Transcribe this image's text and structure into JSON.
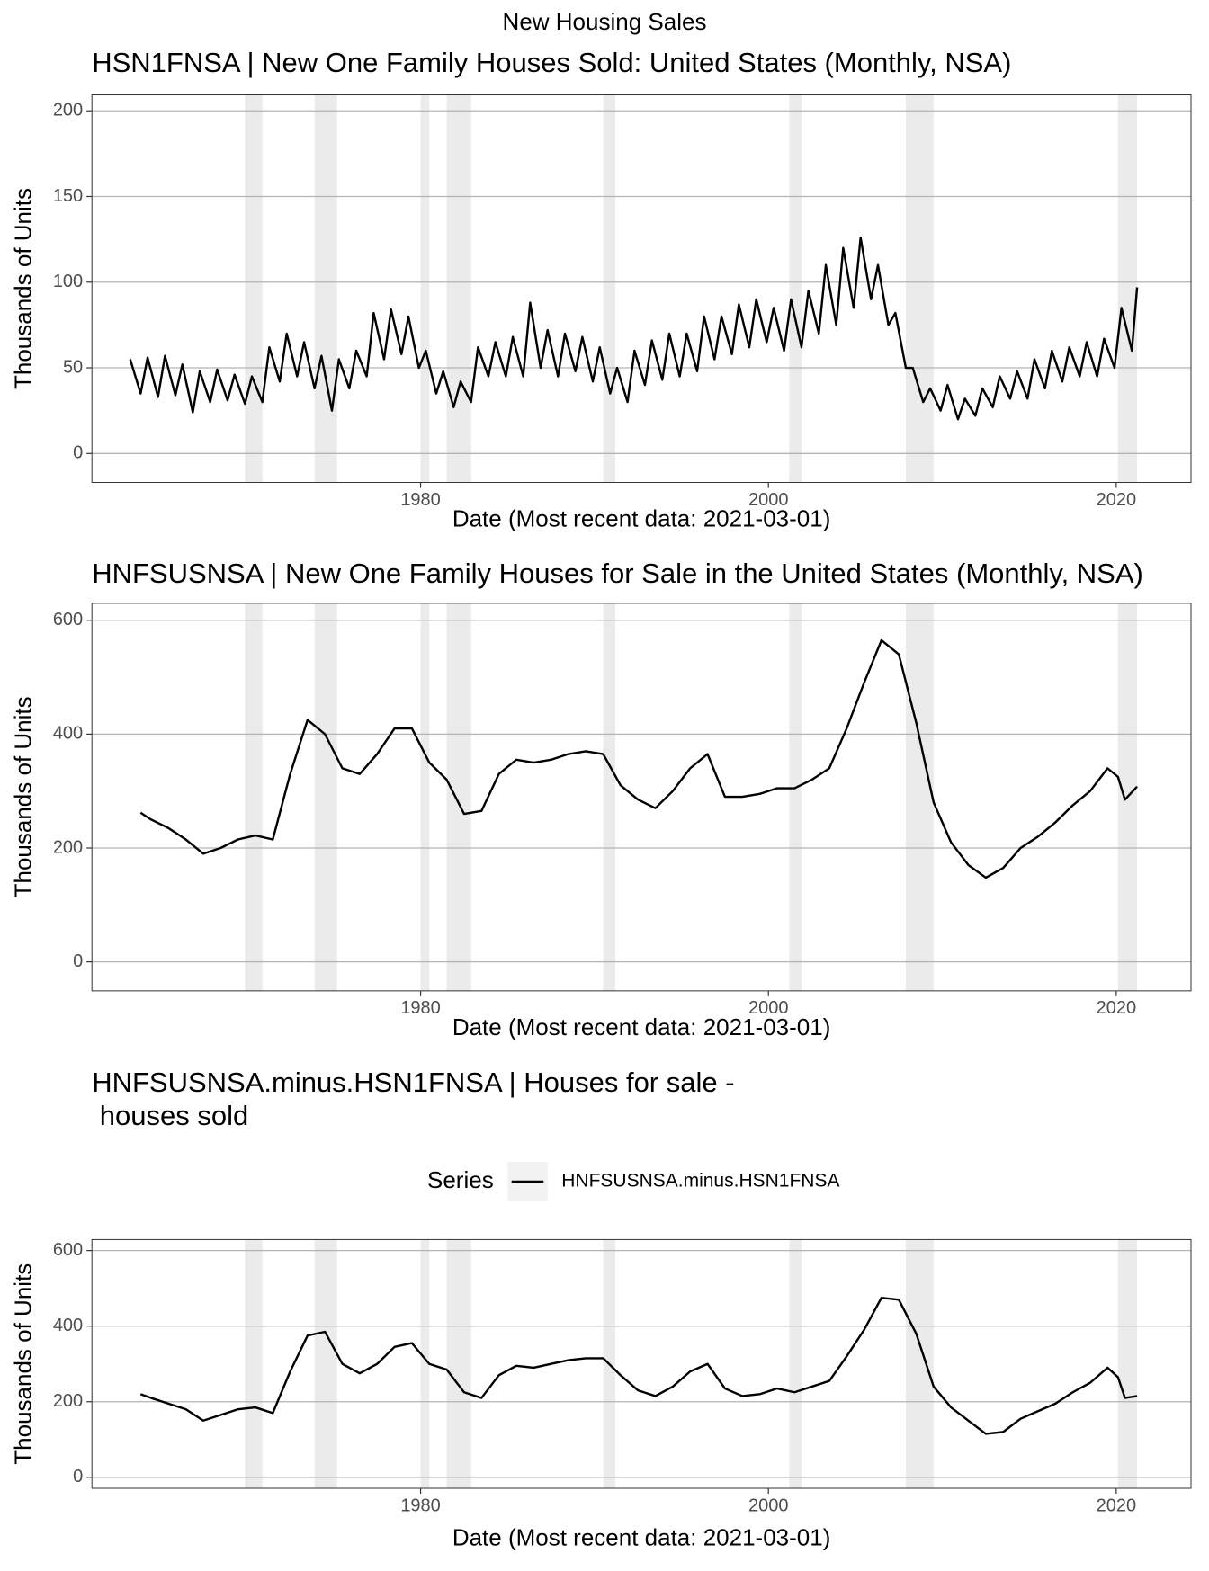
{
  "title": "New Housing Sales",
  "chart_data": [
    {
      "type": "line",
      "title": "HSN1FNSA | New One Family Houses Sold: United States (Monthly, NSA)",
      "x_label": "Date (Most recent data: 2021-03-01)",
      "y_label": "Thousands of Units",
      "x": [
        1963.3,
        1963.9,
        1964.3,
        1964.9,
        1965.3,
        1965.9,
        1966.3,
        1966.9,
        1967.3,
        1967.9,
        1968.3,
        1968.9,
        1969.3,
        1969.9,
        1970.3,
        1970.9,
        1971.3,
        1971.9,
        1972.3,
        1972.9,
        1973.3,
        1973.9,
        1974.3,
        1974.9,
        1975.3,
        1975.9,
        1976.3,
        1976.9,
        1977.3,
        1977.9,
        1978.3,
        1978.9,
        1979.3,
        1979.9,
        1980.3,
        1980.9,
        1981.3,
        1981.9,
        1982.3,
        1982.9,
        1983.3,
        1983.9,
        1984.3,
        1984.9,
        1985.3,
        1985.9,
        1986.3,
        1986.9,
        1987.3,
        1987.9,
        1988.3,
        1988.9,
        1989.3,
        1989.9,
        1990.3,
        1990.9,
        1991.3,
        1991.9,
        1992.3,
        1992.9,
        1993.3,
        1993.9,
        1994.3,
        1994.9,
        1995.3,
        1995.9,
        1996.3,
        1996.9,
        1997.3,
        1997.9,
        1998.3,
        1998.9,
        1999.3,
        1999.9,
        2000.3,
        2000.9,
        2001.3,
        2001.9,
        2002.3,
        2002.9,
        2003.3,
        2003.9,
        2004.3,
        2004.9,
        2005.3,
        2005.9,
        2006.3,
        2006.9,
        2007.3,
        2007.9,
        2008.3,
        2008.9,
        2009.3,
        2009.9,
        2010.3,
        2010.9,
        2011.3,
        2011.9,
        2012.3,
        2012.9,
        2013.3,
        2013.9,
        2014.3,
        2014.9,
        2015.3,
        2015.9,
        2016.3,
        2016.9,
        2017.3,
        2017.9,
        2018.3,
        2018.9,
        2019.3,
        2019.9,
        2020.3,
        2020.9,
        2021.2
      ],
      "series": [
        {
          "color": "#000000",
          "values": [
            55,
            35,
            56,
            33,
            57,
            34,
            52,
            24,
            48,
            30,
            49,
            31,
            46,
            29,
            45,
            30,
            62,
            42,
            70,
            45,
            65,
            38,
            57,
            25,
            55,
            38,
            60,
            45,
            82,
            55,
            84,
            58,
            80,
            50,
            60,
            35,
            48,
            27,
            42,
            30,
            62,
            45,
            65,
            45,
            68,
            45,
            88,
            50,
            72,
            45,
            70,
            48,
            68,
            42,
            62,
            35,
            50,
            30,
            60,
            40,
            66,
            43,
            70,
            45,
            70,
            48,
            80,
            55,
            80,
            58,
            87,
            62,
            90,
            65,
            85,
            60,
            90,
            62,
            95,
            70,
            110,
            75,
            120,
            85,
            126,
            90,
            110,
            75,
            82,
            50,
            50,
            30,
            38,
            25,
            40,
            20,
            32,
            22,
            38,
            27,
            45,
            32,
            48,
            32,
            55,
            38,
            60,
            42,
            62,
            45,
            65,
            45,
            67,
            50,
            85,
            60,
            97
          ]
        }
      ],
      "xlim": [
        1961.1,
        2024.3
      ],
      "xticks": [
        1980,
        2000,
        2020
      ],
      "ylim": [
        -16.9,
        209.3
      ],
      "yticks": [
        0,
        50,
        100,
        150,
        200
      ],
      "grid": true,
      "recession_color": "#ebebeb",
      "recessions": [
        [
          1969.9,
          1970.9
        ],
        [
          1973.9,
          1975.2
        ],
        [
          1980.0,
          1980.5
        ],
        [
          1981.5,
          1982.9
        ],
        [
          1990.5,
          1991.2
        ],
        [
          2001.2,
          2001.9
        ],
        [
          2007.9,
          2009.5
        ],
        [
          2020.1,
          2021.2
        ]
      ]
    },
    {
      "type": "line",
      "title": "HNFSUSNSA | New One Family Houses for Sale in the United States (Monthly, NSA)",
      "x_label": "Date (Most recent data: 2021-03-01)",
      "y_label": "Thousands of Units",
      "x": [
        1963.9,
        1964.5,
        1965.5,
        1966.5,
        1967.5,
        1968.5,
        1969.5,
        1970.5,
        1971.5,
        1972.5,
        1973.5,
        1974.5,
        1975.5,
        1976.5,
        1977.5,
        1978.5,
        1979.5,
        1980.5,
        1981.5,
        1982.5,
        1983.5,
        1984.5,
        1985.5,
        1986.5,
        1987.5,
        1988.5,
        1989.5,
        1990.5,
        1991.5,
        1992.5,
        1993.5,
        1994.5,
        1995.5,
        1996.5,
        1997.5,
        1998.5,
        1999.5,
        2000.5,
        2001.5,
        2002.5,
        2003.5,
        2004.5,
        2005.5,
        2006.5,
        2007.5,
        2008.5,
        2009.5,
        2010.5,
        2011.5,
        2012.5,
        2013.5,
        2014.5,
        2015.5,
        2016.5,
        2017.5,
        2018.5,
        2019.5,
        2020.1,
        2020.5,
        2021.2
      ],
      "series": [
        {
          "color": "#000000",
          "values": [
            262,
            250,
            235,
            215,
            190,
            200,
            215,
            222,
            215,
            330,
            425,
            400,
            340,
            330,
            365,
            410,
            410,
            350,
            320,
            260,
            265,
            330,
            355,
            350,
            355,
            365,
            370,
            365,
            310,
            285,
            270,
            300,
            340,
            365,
            290,
            290,
            295,
            305,
            305,
            320,
            340,
            410,
            490,
            565,
            540,
            420,
            280,
            210,
            170,
            148,
            165,
            200,
            220,
            245,
            275,
            300,
            340,
            325,
            285,
            308
          ]
        }
      ],
      "xlim": [
        1961.1,
        2024.3
      ],
      "xticks": [
        1980,
        2000,
        2020
      ],
      "ylim": [
        -50.9,
        629.8
      ],
      "yticks": [
        0,
        200,
        400,
        600
      ],
      "grid": true,
      "recession_color": "#ebebeb",
      "recessions": [
        [
          1969.9,
          1970.9
        ],
        [
          1973.9,
          1975.2
        ],
        [
          1980.0,
          1980.5
        ],
        [
          1981.5,
          1982.9
        ],
        [
          1990.5,
          1991.2
        ],
        [
          2001.2,
          2001.9
        ],
        [
          2007.9,
          2009.5
        ],
        [
          2020.1,
          2021.2
        ]
      ]
    },
    {
      "type": "line",
      "title": "HNFSUSNSA.minus.HSN1FNSA | Houses for sale -\n houses sold",
      "x_label": "Date (Most recent data: 2021-03-01)",
      "y_label": "Thousands of Units",
      "legend_title": "Series",
      "legend": "top",
      "x": [
        1963.9,
        1964.5,
        1965.5,
        1966.5,
        1967.5,
        1968.5,
        1969.5,
        1970.5,
        1971.5,
        1972.5,
        1973.5,
        1974.5,
        1975.5,
        1976.5,
        1977.5,
        1978.5,
        1979.5,
        1980.5,
        1981.5,
        1982.5,
        1983.5,
        1984.5,
        1985.5,
        1986.5,
        1987.5,
        1988.5,
        1989.5,
        1990.5,
        1991.5,
        1992.5,
        1993.5,
        1994.5,
        1995.5,
        1996.5,
        1997.5,
        1998.5,
        1999.5,
        2000.5,
        2001.5,
        2002.5,
        2003.5,
        2004.5,
        2005.5,
        2006.5,
        2007.5,
        2008.5,
        2009.5,
        2010.5,
        2011.5,
        2012.5,
        2013.5,
        2014.5,
        2015.5,
        2016.5,
        2017.5,
        2018.5,
        2019.5,
        2020.1,
        2020.5,
        2021.2
      ],
      "series": [
        {
          "name": "HNFSUSNSA.minus.HSN1FNSA",
          "color": "#000000",
          "values": [
            220,
            210,
            195,
            180,
            150,
            165,
            180,
            185,
            170,
            280,
            375,
            385,
            300,
            275,
            300,
            345,
            355,
            300,
            285,
            225,
            210,
            270,
            295,
            290,
            300,
            310,
            315,
            315,
            270,
            230,
            215,
            240,
            280,
            300,
            235,
            215,
            220,
            235,
            225,
            240,
            255,
            320,
            390,
            475,
            470,
            380,
            240,
            185,
            150,
            115,
            120,
            155,
            175,
            195,
            225,
            250,
            290,
            265,
            210,
            215
          ]
        }
      ],
      "xlim": [
        1961.1,
        2024.3
      ],
      "xticks": [
        1980,
        2000,
        2020
      ],
      "ylim": [
        -29,
        629
      ],
      "yticks": [
        0,
        200,
        400,
        600
      ],
      "grid": true,
      "recession_color": "#ebebeb",
      "recessions": [
        [
          1969.9,
          1970.9
        ],
        [
          1973.9,
          1975.2
        ],
        [
          1980.0,
          1980.5
        ],
        [
          1981.5,
          1982.9
        ],
        [
          1990.5,
          1991.2
        ],
        [
          2001.2,
          2001.9
        ],
        [
          2007.9,
          2009.5
        ],
        [
          2020.1,
          2021.2
        ]
      ]
    }
  ]
}
